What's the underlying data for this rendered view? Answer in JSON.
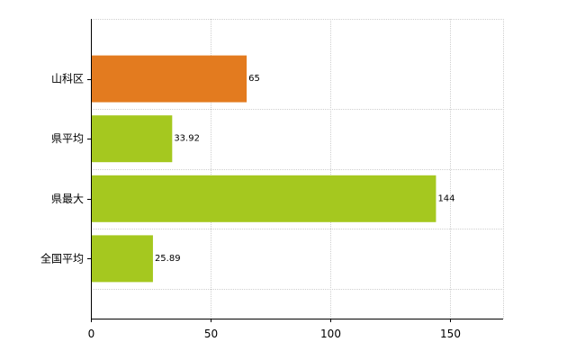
{
  "chart_data": {
    "type": "bar",
    "orientation": "horizontal",
    "categories": [
      "山科区",
      "県平均",
      "県最大",
      "全国平均"
    ],
    "values": [
      65,
      33.92,
      144,
      25.89
    ],
    "value_labels": [
      "65",
      "33.92",
      "144",
      "25.89"
    ],
    "bar_colors": [
      "#e37b1f",
      "#a5c81f",
      "#a5c81f",
      "#a5c81f"
    ],
    "xlim": [
      0,
      172
    ],
    "xticks": [
      0,
      50,
      100,
      150
    ],
    "xtick_labels": [
      "0",
      "50",
      "100",
      "150"
    ],
    "grid": true,
    "title": "",
    "xlabel": "",
    "ylabel": ""
  }
}
